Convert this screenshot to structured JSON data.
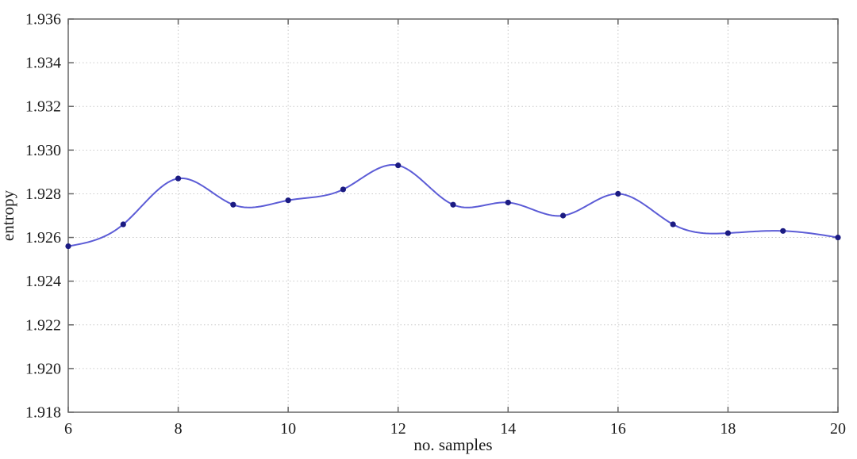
{
  "chart_data": {
    "type": "line",
    "title": "",
    "xlabel": "no. samples",
    "ylabel": "entropy",
    "x": [
      6,
      7,
      8,
      9,
      10,
      11,
      12,
      13,
      14,
      15,
      16,
      17,
      18,
      19,
      20
    ],
    "series": [
      {
        "name": "entropy",
        "values": [
          1.9256,
          1.9266,
          1.9287,
          1.9275,
          1.9277,
          1.9282,
          1.9293,
          1.9275,
          1.9276,
          1.927,
          1.928,
          1.9266,
          1.9262,
          1.9263,
          1.926
        ]
      }
    ],
    "xlim": [
      6,
      20
    ],
    "ylim": [
      1.918,
      1.936
    ],
    "xtick_labels": [
      "6",
      "8",
      "10",
      "12",
      "14",
      "16",
      "18",
      "20"
    ],
    "ytick_labels": [
      "1.918",
      "1.920",
      "1.922",
      "1.924",
      "1.926",
      "1.928",
      "1.930",
      "1.932",
      "1.934",
      "1.936"
    ],
    "grid": true,
    "smooth": "cspline",
    "legend": "none",
    "colors": {
      "line": "#5c5cd6",
      "marker": "#1b1b82",
      "axis": "#666666",
      "grid": "#c9c9c9",
      "text": "#1b1b1b",
      "background": "#ffffff"
    }
  }
}
